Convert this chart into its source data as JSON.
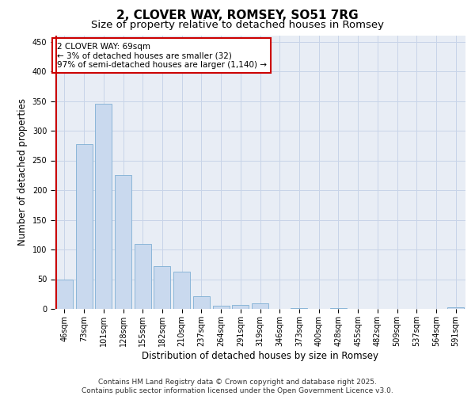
{
  "title": "2, CLOVER WAY, ROMSEY, SO51 7RG",
  "subtitle": "Size of property relative to detached houses in Romsey",
  "xlabel": "Distribution of detached houses by size in Romsey",
  "ylabel": "Number of detached properties",
  "categories": [
    "46sqm",
    "73sqm",
    "101sqm",
    "128sqm",
    "155sqm",
    "182sqm",
    "210sqm",
    "237sqm",
    "264sqm",
    "291sqm",
    "319sqm",
    "346sqm",
    "373sqm",
    "400sqm",
    "428sqm",
    "455sqm",
    "482sqm",
    "509sqm",
    "537sqm",
    "564sqm",
    "591sqm"
  ],
  "values": [
    50,
    278,
    345,
    225,
    110,
    72,
    63,
    22,
    5,
    7,
    9,
    0,
    2,
    0,
    2,
    0,
    0,
    0,
    0,
    0,
    3
  ],
  "bar_color": "#c9d9ee",
  "bar_edge_color": "#7fafd4",
  "highlight_line_color": "#cc0000",
  "annotation_text": "2 CLOVER WAY: 69sqm\n← 3% of detached houses are smaller (32)\n97% of semi-detached houses are larger (1,140) →",
  "annotation_box_color": "#cc0000",
  "ylim": [
    0,
    460
  ],
  "yticks": [
    0,
    50,
    100,
    150,
    200,
    250,
    300,
    350,
    400,
    450
  ],
  "grid_color": "#c8d4e8",
  "background_color": "#e8edf5",
  "footer_text": "Contains HM Land Registry data © Crown copyright and database right 2025.\nContains public sector information licensed under the Open Government Licence v3.0.",
  "title_fontsize": 11,
  "subtitle_fontsize": 9.5,
  "axis_label_fontsize": 8.5,
  "tick_fontsize": 7,
  "annotation_fontsize": 7.5,
  "footer_fontsize": 6.5
}
